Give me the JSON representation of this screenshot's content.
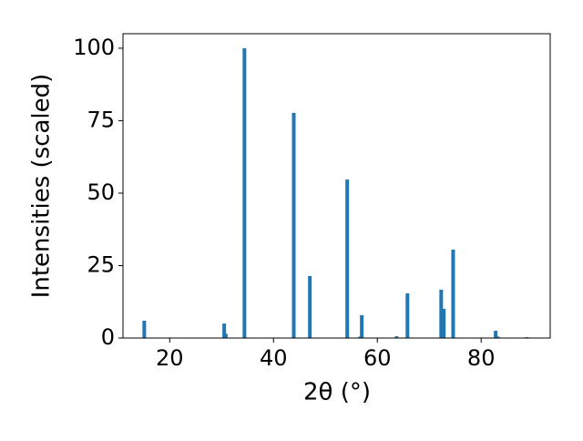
{
  "chart_data": {
    "type": "bar",
    "x_label": "2θ (°)",
    "y_label": "Intensities (scaled)",
    "x": [
      15.1,
      30.5,
      30.8,
      34.4,
      43.9,
      47.0,
      54.2,
      56.7,
      57.0,
      63.7,
      65.8,
      72.3,
      72.8,
      74.6,
      82.8,
      83.2,
      88.8
    ],
    "values": [
      6.0,
      5.0,
      1.5,
      100,
      77.7,
      21.4,
      54.7,
      0.5,
      7.9,
      0.6,
      15.4,
      16.7,
      10.1,
      30.5,
      2.5,
      0.5,
      0.3
    ],
    "color": "#1f77b4",
    "xlim": [
      11.0,
      93.3
    ],
    "ylim": [
      0,
      105
    ],
    "xticks": [
      20,
      40,
      60,
      80
    ],
    "yticks": [
      0,
      25,
      50,
      75,
      100
    ]
  }
}
